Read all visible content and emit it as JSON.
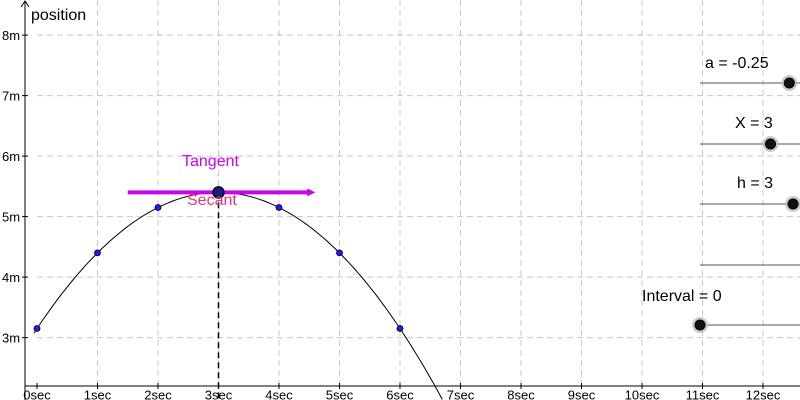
{
  "axes": {
    "y_title": "position",
    "x_tick_labels": [
      "0sec",
      "1sec",
      "2sec",
      "3sec",
      "4sec",
      "5sec",
      "6sec",
      "7sec",
      "8sec",
      "9sec",
      "10sec",
      "11sec",
      "12sec"
    ],
    "y_tick_labels": [
      "3m",
      "4m",
      "5m",
      "6m",
      "7m",
      "8m"
    ]
  },
  "sliders": [
    {
      "key": "a",
      "label": "a = -0.25",
      "value": 0.95
    },
    {
      "key": "X",
      "label": "X = 3",
      "value": 0.75
    },
    {
      "key": "h",
      "label": "h = 3",
      "value": 0.99
    },
    {
      "key": "interval",
      "label": "Interval = 0",
      "value": 0.0
    }
  ],
  "labels": {
    "tangent": "Tangent",
    "secant": "Secant"
  },
  "colors": {
    "tangent": "#cc00ee",
    "secant": "#ee3377",
    "points": "#1a1aff",
    "grid": "#c8c8c8"
  },
  "chart_data": {
    "type": "line",
    "function": "p(t) = -0.25 (t - 3)^2 + 5.4",
    "x_range": [
      0,
      12.5
    ],
    "y_range": [
      2.5,
      8
    ],
    "a": -0.25,
    "vertex": [
      3,
      5.4
    ],
    "points": [
      {
        "x": 0,
        "y": 3.15
      },
      {
        "x": 1,
        "y": 4.4
      },
      {
        "x": 2,
        "y": 5.15
      },
      {
        "x": 3,
        "y": 5.4
      },
      {
        "x": 4,
        "y": 5.15
      },
      {
        "x": 5,
        "y": 4.4
      },
      {
        "x": 6,
        "y": 3.15
      }
    ],
    "tangent_point": {
      "x": 3,
      "y": 5.4
    },
    "tangent_x_range": [
      1.5,
      4.5
    ],
    "marked_x": 3
  }
}
